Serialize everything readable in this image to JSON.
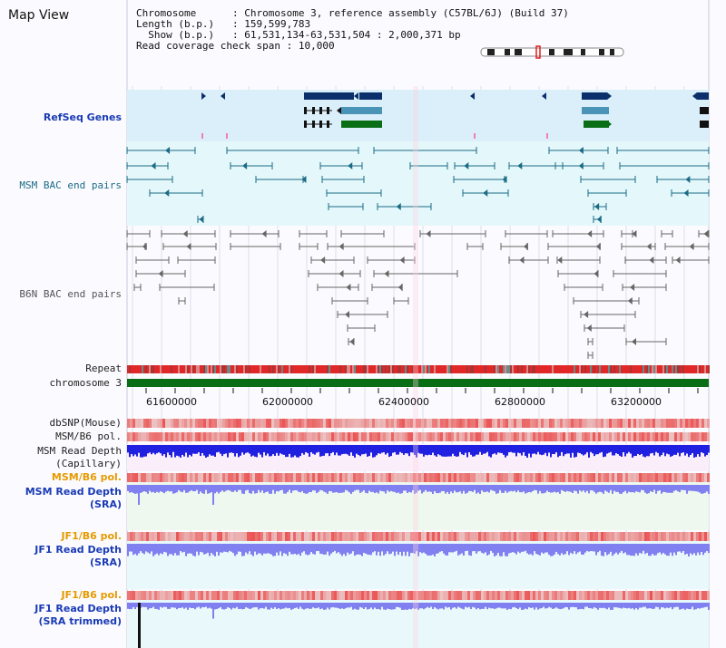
{
  "title": "Map View",
  "header": {
    "chromosome_label": "Chromosome",
    "chromosome_value": "Chromosome 3, reference assembly (C57BL/6J) (Build 37)",
    "length_label": "Length (b.p.)",
    "length_value": "159,599,783",
    "show_label": "Show (b.p.)",
    "show_value": "61,531,134-63,531,504 : 2,000,371 bp",
    "coverage_label": "Read coverage check span",
    "coverage_value": "10,000"
  },
  "tracks": {
    "refseq": "RefSeq Genes",
    "msm_bac": "MSM BAC end pairs",
    "b6n_bac": "B6N BAC end pairs",
    "repeat": "Repeat",
    "chromosome": "chromosome 3",
    "dbsnp": "dbSNP(Mouse)",
    "msm_b6_pol": "MSM/B6 pol.",
    "msm_read_depth_cap_1": "MSM Read Depth",
    "msm_read_depth_cap_2": "(Capillary)",
    "msm_b6_pol_2": "MSM/B6 pol.",
    "msm_read_depth_sra_1": "MSM Read Depth",
    "msm_read_depth_sra_2": "(SRA)",
    "jf1_b6_pol": "JF1/B6 pol.",
    "jf1_read_depth_sra_1": "JF1 Read Depth",
    "jf1_read_depth_sra_2": "(SRA)",
    "jf1_b6_pol_2": "JF1/B6 pol.",
    "jf1_read_depth_trim_1": "JF1 Read Depth",
    "jf1_read_depth_trim_2": "(SRA trimmed)"
  },
  "axis_ticks": [
    "61600000",
    "62000000",
    "62400000",
    "62800000",
    "63200000"
  ],
  "colors": {
    "refseq_bg": "#dbeffa",
    "msm_bg": "#e4f7fa",
    "teal_feature": "#1a6b86",
    "gray_feature": "#666666",
    "gene_navy": "#0b2f6b",
    "gene_steel": "#4a94b8",
    "gene_green": "#0a6e16",
    "chromosome_bar": "#0a6e16",
    "depth_blue": "#2020e0",
    "depth_light_blue": "#8080f0",
    "pol_red": "#e83030"
  }
}
